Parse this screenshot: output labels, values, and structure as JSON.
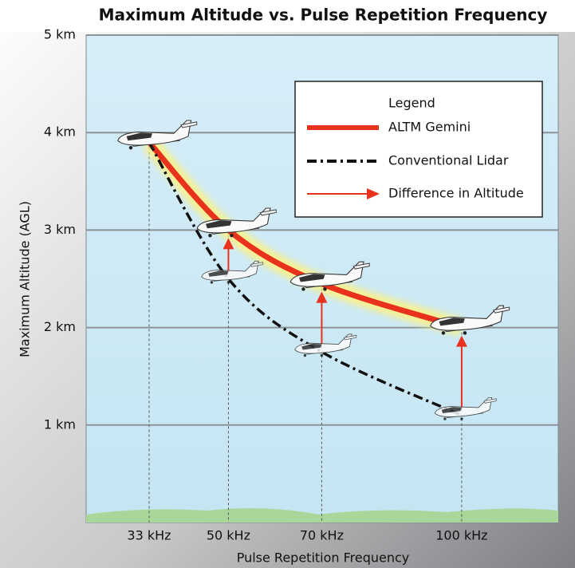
{
  "chart_data": {
    "type": "line",
    "title": "Maximum Altitude vs. Pulse Repetition Frequency",
    "x_label": "Pulse Repetition Frequency",
    "y_label": "Maximum Altitude (AGL)",
    "legend_title": "Legend",
    "arrow_label": "Difference in Altitude",
    "arrow_color": "#e8321e",
    "x": [
      33,
      50,
      70,
      100
    ],
    "series": [
      {
        "name": "ALTM Gemini",
        "color": "#e8321e",
        "style": "solid",
        "values": [
          3.9,
          3.0,
          2.45,
          2.0
        ]
      },
      {
        "name": "Conventional Lidar",
        "color": "#111111",
        "style": "dashdot",
        "values": [
          3.9,
          2.5,
          1.75,
          1.1
        ]
      }
    ],
    "xlim": [
      19.5,
      120.7
    ],
    "ylim": [
      0,
      5
    ],
    "xticks": [
      {
        "value": 33,
        "label": "33 kHz"
      },
      {
        "value": 50,
        "label": "50 kHz"
      },
      {
        "value": 70,
        "label": "70 kHz"
      },
      {
        "value": 100,
        "label": "100 kHz"
      }
    ],
    "yticks": [
      {
        "value": 1,
        "label": "1 km"
      },
      {
        "value": 2,
        "label": "2 km"
      },
      {
        "value": 3,
        "label": "3 km"
      },
      {
        "value": 4,
        "label": "4 km"
      },
      {
        "value": 5,
        "label": "5 km"
      }
    ],
    "grid": true,
    "legend": "upper right"
  }
}
